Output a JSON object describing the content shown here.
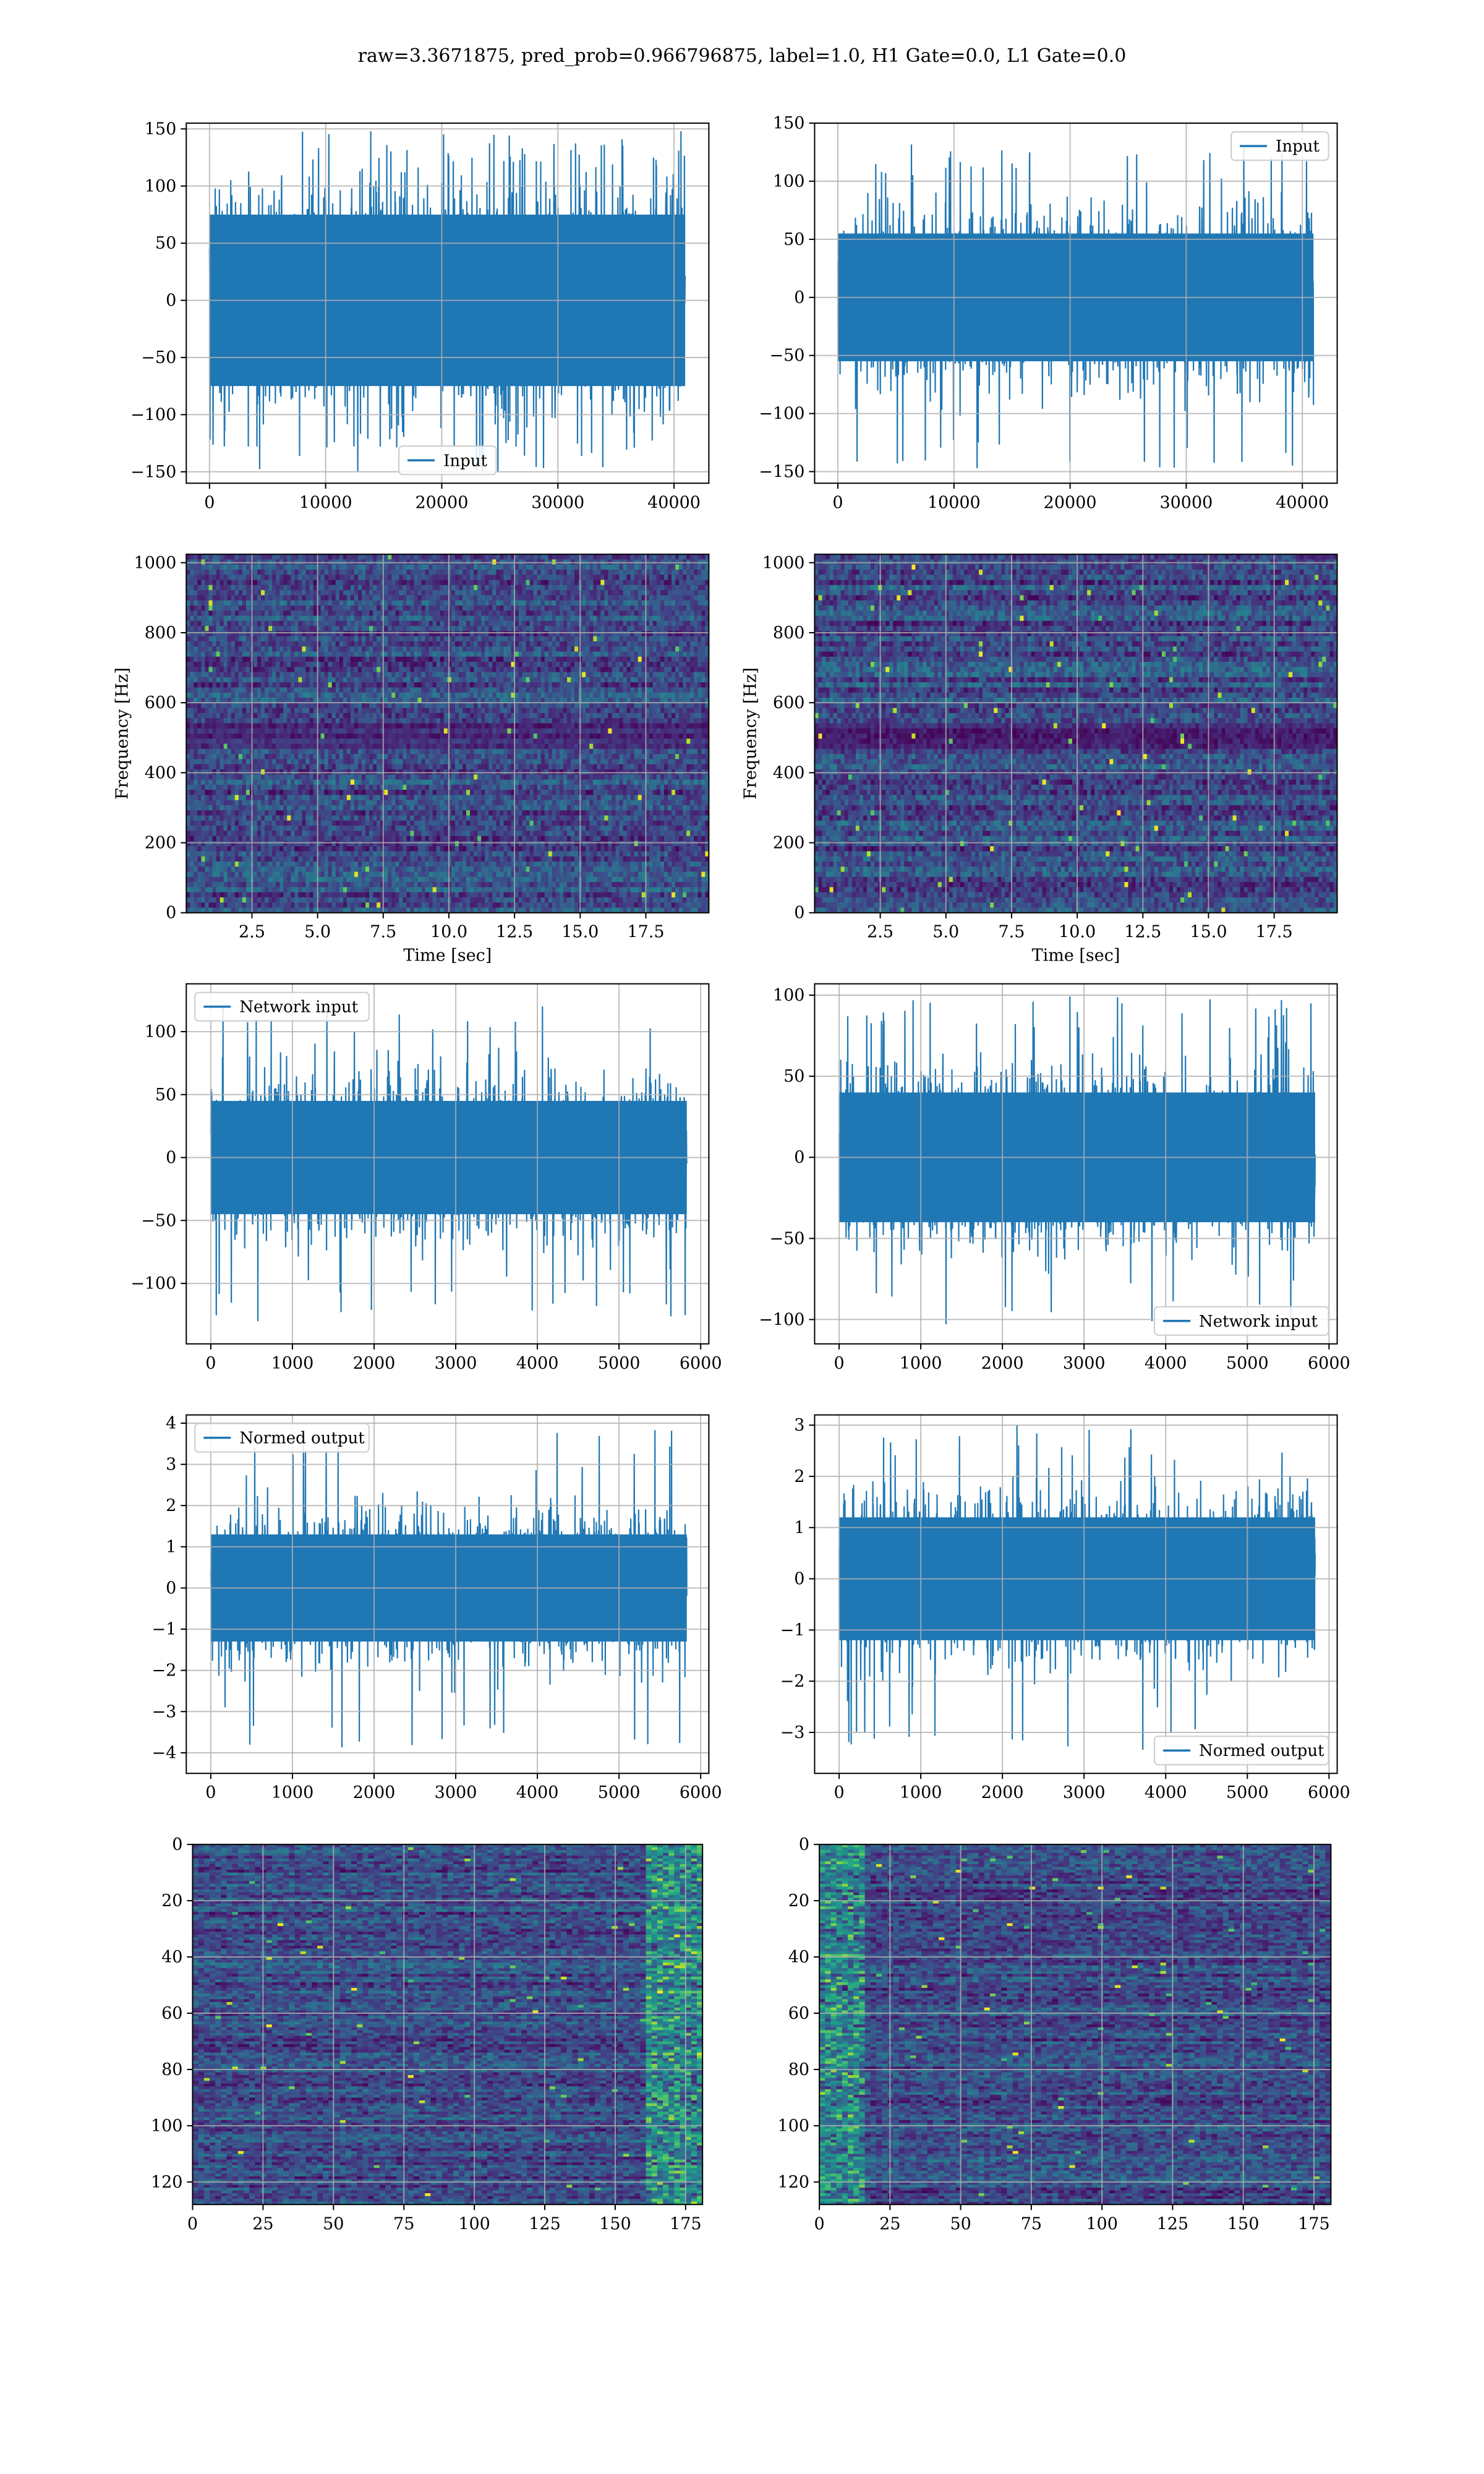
{
  "figure": {
    "suptitle": "raw=3.3671875, pred_prob=0.966796875, label=1.0, H1 Gate=0.0, L1 Gate=0.0",
    "colors": {
      "line": "#1f77b4",
      "grid": "#b0b0b0",
      "axes": "#000000"
    }
  },
  "chart_data": [
    {
      "id": "h1-input",
      "type": "line",
      "series": [
        {
          "name": "Input"
        }
      ],
      "legend_loc": "lower-center",
      "x_range": [
        0,
        40960
      ],
      "y_amplitude": 75,
      "y_peak_min": -150,
      "y_peak_max": 148,
      "xlim": [
        -2000,
        43000
      ],
      "ylim": [
        -160,
        155
      ],
      "xticks": [
        0,
        10000,
        20000,
        30000,
        40000
      ],
      "yticks": [
        -150,
        -100,
        -50,
        0,
        50,
        100,
        150
      ],
      "xticklabels": [
        "0",
        "10000",
        "20000",
        "30000",
        "40000"
      ],
      "yticklabels": [
        "−150",
        "−100",
        "−50",
        "0",
        "50",
        "100",
        "150"
      ],
      "grid": true
    },
    {
      "id": "l1-input",
      "type": "line",
      "series": [
        {
          "name": "Input"
        }
      ],
      "legend_loc": "upper-right",
      "x_range": [
        0,
        40960
      ],
      "y_amplitude": 55,
      "y_peak_min": -150,
      "y_peak_max": 136,
      "xlim": [
        -2000,
        43000
      ],
      "ylim": [
        -160,
        150
      ],
      "xticks": [
        0,
        10000,
        20000,
        30000,
        40000
      ],
      "yticks": [
        -150,
        -100,
        -50,
        0,
        50,
        100,
        150
      ],
      "xticklabels": [
        "0",
        "10000",
        "20000",
        "30000",
        "40000"
      ],
      "yticklabels": [
        "−150",
        "−100",
        "−50",
        "0",
        "50",
        "100",
        "150"
      ],
      "grid": true
    },
    {
      "id": "h1-spectrogram",
      "type": "heatmap",
      "colormap": "viridis",
      "xlabel": "Time [sec]",
      "ylabel": "Frequency [Hz]",
      "xlim": [
        0,
        19.9
      ],
      "ylim": [
        0,
        1024
      ],
      "xticks": [
        2.5,
        5.0,
        7.5,
        10.0,
        12.5,
        15.0,
        17.5
      ],
      "yticks": [
        0,
        200,
        400,
        600,
        800,
        1000
      ],
      "xticklabels": [
        "2.5",
        "5.0",
        "7.5",
        "10.0",
        "12.5",
        "15.0",
        "17.5"
      ],
      "yticklabels": [
        "0",
        "200",
        "400",
        "600",
        "800",
        "1000"
      ],
      "grid": true
    },
    {
      "id": "l1-spectrogram",
      "type": "heatmap",
      "colormap": "viridis",
      "xlabel": "Time [sec]",
      "ylabel": "Frequency [Hz]",
      "xlim": [
        0,
        19.9
      ],
      "ylim": [
        0,
        1024
      ],
      "xticks": [
        2.5,
        5.0,
        7.5,
        10.0,
        12.5,
        15.0,
        17.5
      ],
      "yticks": [
        0,
        200,
        400,
        600,
        800,
        1000
      ],
      "xticklabels": [
        "2.5",
        "5.0",
        "7.5",
        "10.0",
        "12.5",
        "15.0",
        "17.5"
      ],
      "yticklabels": [
        "0",
        "200",
        "400",
        "600",
        "800",
        "1000"
      ],
      "grid": true
    },
    {
      "id": "h1-network-input",
      "type": "line",
      "series": [
        {
          "name": "Network input"
        }
      ],
      "legend_loc": "upper-left",
      "x_range": [
        0,
        5830
      ],
      "y_amplitude": 45,
      "y_peak_min": -132,
      "y_peak_max": 124,
      "xlim": [
        -300,
        6100
      ],
      "ylim": [
        -148,
        138
      ],
      "xticks": [
        0,
        1000,
        2000,
        3000,
        4000,
        5000,
        6000
      ],
      "yticks": [
        -100,
        -50,
        0,
        50,
        100
      ],
      "xticklabels": [
        "0",
        "1000",
        "2000",
        "3000",
        "4000",
        "5000",
        "6000"
      ],
      "yticklabels": [
        "−100",
        "−50",
        "0",
        "50",
        "100"
      ],
      "grid": true
    },
    {
      "id": "l1-network-input",
      "type": "line",
      "series": [
        {
          "name": "Network input"
        }
      ],
      "legend_loc": "lower-right",
      "x_range": [
        0,
        5830
      ],
      "y_amplitude": 40,
      "y_peak_min": -103,
      "y_peak_max": 100,
      "xlim": [
        -300,
        6100
      ],
      "ylim": [
        -115,
        107
      ],
      "xticks": [
        0,
        1000,
        2000,
        3000,
        4000,
        5000,
        6000
      ],
      "yticks": [
        -100,
        -50,
        0,
        50,
        100
      ],
      "xticklabels": [
        "0",
        "1000",
        "2000",
        "3000",
        "4000",
        "5000",
        "6000"
      ],
      "yticklabels": [
        "−100",
        "−50",
        "0",
        "50",
        "100"
      ],
      "grid": true
    },
    {
      "id": "h1-normed-output",
      "type": "line",
      "series": [
        {
          "name": "Normed output"
        }
      ],
      "legend_loc": "upper-left",
      "x_range": [
        0,
        5830
      ],
      "y_amplitude": 1.3,
      "y_peak_min": -4.1,
      "y_peak_max": 3.9,
      "xlim": [
        -300,
        6100
      ],
      "ylim": [
        -4.5,
        4.2
      ],
      "xticks": [
        0,
        1000,
        2000,
        3000,
        4000,
        5000,
        6000
      ],
      "yticks": [
        -4,
        -3,
        -2,
        -1,
        0,
        1,
        2,
        3,
        4
      ],
      "xticklabels": [
        "0",
        "1000",
        "2000",
        "3000",
        "4000",
        "5000",
        "6000"
      ],
      "yticklabels": [
        "−4",
        "−3",
        "−2",
        "−1",
        "0",
        "1",
        "2",
        "3",
        "4"
      ],
      "grid": true
    },
    {
      "id": "l1-normed-output",
      "type": "line",
      "series": [
        {
          "name": "Normed output"
        }
      ],
      "legend_loc": "lower-right",
      "x_range": [
        0,
        5830
      ],
      "y_amplitude": 1.2,
      "y_peak_min": -3.4,
      "y_peak_max": 3.0,
      "xlim": [
        -300,
        6100
      ],
      "ylim": [
        -3.8,
        3.2
      ],
      "xticks": [
        0,
        1000,
        2000,
        3000,
        4000,
        5000,
        6000
      ],
      "yticks": [
        -3,
        -2,
        -1,
        0,
        1,
        2,
        3
      ],
      "xticklabels": [
        "0",
        "1000",
        "2000",
        "3000",
        "4000",
        "5000",
        "6000"
      ],
      "yticklabels": [
        "−3",
        "−2",
        "−1",
        "0",
        "1",
        "2",
        "3"
      ],
      "grid": true
    },
    {
      "id": "h1-feature-map",
      "type": "heatmap",
      "colormap": "viridis",
      "y_inverted": true,
      "xlim": [
        0,
        181
      ],
      "ylim": [
        128,
        0
      ],
      "xticks": [
        0,
        25,
        50,
        75,
        100,
        125,
        150,
        175
      ],
      "yticks": [
        0,
        20,
        40,
        60,
        80,
        100,
        120
      ],
      "xticklabels": [
        "0",
        "25",
        "50",
        "75",
        "100",
        "125",
        "150",
        "175"
      ],
      "yticklabels": [
        "0",
        "20",
        "40",
        "60",
        "80",
        "100",
        "120"
      ],
      "grid": true
    },
    {
      "id": "l1-feature-map",
      "type": "heatmap",
      "colormap": "viridis",
      "y_inverted": true,
      "xlim": [
        0,
        181
      ],
      "ylim": [
        128,
        0
      ],
      "xticks": [
        0,
        25,
        50,
        75,
        100,
        125,
        150,
        175
      ],
      "yticks": [
        0,
        20,
        40,
        60,
        80,
        100,
        120
      ],
      "xticklabels": [
        "0",
        "25",
        "50",
        "75",
        "100",
        "125",
        "150",
        "175"
      ],
      "yticklabels": [
        "0",
        "20",
        "40",
        "60",
        "80",
        "100",
        "120"
      ],
      "grid": true
    }
  ]
}
